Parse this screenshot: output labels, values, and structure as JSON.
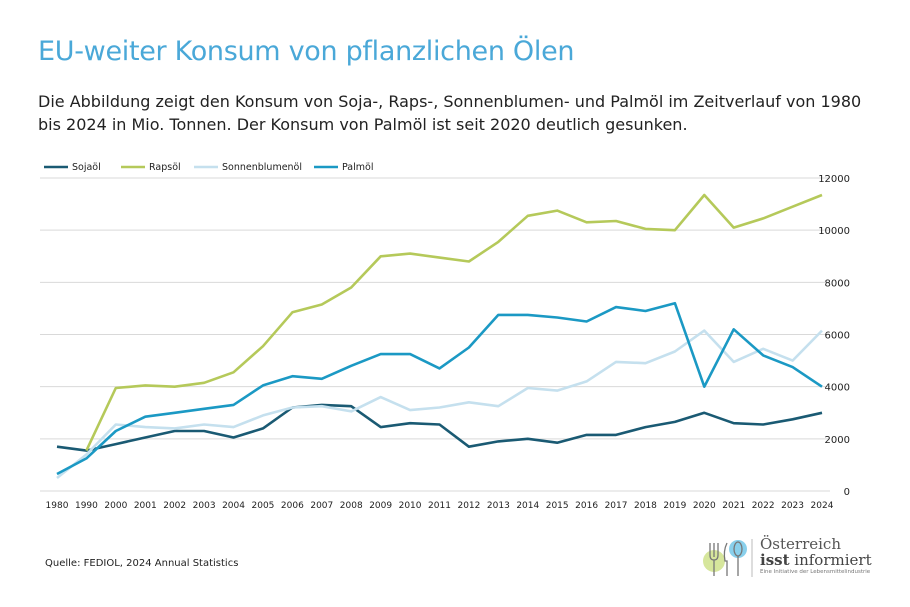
{
  "title": "EU-weiter Konsum von pflanzlichen Ölen",
  "subtitle": "Die Abbildung zeigt den Konsum von Soja-, Raps-, Sonnenblumen- und Palmöl im Zeitverlauf von 1980 bis 2024 in Mio. Tonnen. Der Konsum von Palmöl ist seit 2020 deutlich gesunken.",
  "source": "Quelle: FEDIOL, 2024 Annual Statistics",
  "logo": {
    "line1": "Österreich",
    "line2a": "isst",
    "line2b": " informiert",
    "line3": "Eine Initiative der Lebensmittelindustrie"
  },
  "chart_data": {
    "type": "line",
    "title": "",
    "xlabel": "",
    "ylabel": "",
    "ylim": [
      0,
      12000
    ],
    "yticks": [
      0,
      2000,
      4000,
      6000,
      8000,
      10000,
      12000
    ],
    "y_axis_side": "right",
    "grid": true,
    "legend_placement": "top-left",
    "categories": [
      "1980",
      "1990",
      "2000",
      "2001",
      "2002",
      "2003",
      "2004",
      "2005",
      "2006",
      "2007",
      "2008",
      "2009",
      "2010",
      "2011",
      "2012",
      "2013",
      "2014",
      "2015",
      "2016",
      "2017",
      "2018",
      "2019",
      "2020",
      "2021",
      "2022",
      "2023",
      "2024"
    ],
    "series": [
      {
        "name": "Sojaöl",
        "color": "#1a5a73",
        "values": [
          1700,
          1550,
          1800,
          2050,
          2300,
          2300,
          2050,
          2400,
          3200,
          3300,
          3250,
          2450,
          2600,
          2550,
          1700,
          1900,
          2000,
          1850,
          2150,
          2150,
          2450,
          2650,
          3000,
          2600,
          2550,
          2750,
          3000
        ]
      },
      {
        "name": "Rapsöl",
        "color": "#b5c95a",
        "values": [
          null,
          1550,
          3950,
          4050,
          4000,
          4150,
          4550,
          5550,
          6850,
          7150,
          7800,
          9000,
          9100,
          8950,
          8800,
          9550,
          10550,
          10750,
          10300,
          10350,
          10050,
          10000,
          11350,
          10100,
          10450,
          10900,
          11350
        ]
      },
      {
        "name": "Sonnenblumenöl",
        "color": "#c5e0ee",
        "values": [
          500,
          1400,
          2550,
          2450,
          2400,
          2550,
          2450,
          2900,
          3200,
          3250,
          3050,
          3600,
          3100,
          3200,
          3400,
          3250,
          3950,
          3850,
          4200,
          4950,
          4900,
          5350,
          6150,
          4950,
          5450,
          5000,
          6150
        ]
      },
      {
        "name": "Palmöl",
        "color": "#1b99c4",
        "values": [
          650,
          1250,
          2300,
          2850,
          3000,
          3150,
          3300,
          4050,
          4400,
          4300,
          4800,
          5250,
          5250,
          4700,
          5500,
          6750,
          6750,
          6650,
          6500,
          7050,
          6900,
          7200,
          4000,
          6200,
          5200,
          4750,
          4000
        ]
      }
    ]
  }
}
